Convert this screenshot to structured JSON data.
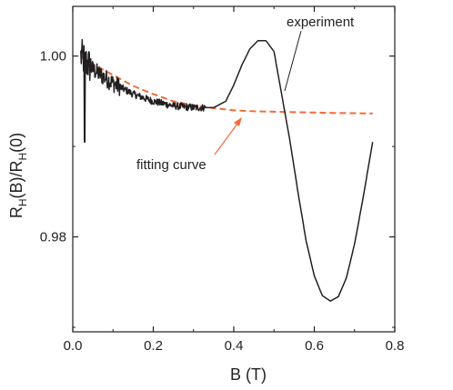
{
  "chart_data": {
    "type": "line",
    "xlabel": "B (T)",
    "ylabel": {
      "r": "R",
      "h1": "H",
      "mid": "(B)/R",
      "h2": "H",
      "end": "(0)"
    },
    "xlim": [
      0.0,
      0.8
    ],
    "ylim": [
      0.9695,
      1.0055
    ],
    "x_ticks": [
      0.0,
      0.2,
      0.4,
      0.6,
      0.8
    ],
    "x_tick_labels": [
      "0.0",
      "0.2",
      "0.4",
      "0.6",
      "0.8"
    ],
    "y_ticks": [
      0.98,
      1.0
    ],
    "y_tick_labels": [
      "0.98",
      "1.00"
    ],
    "grid": false,
    "legend": "none",
    "annotations": [
      {
        "text": "experiment",
        "points_to": {
          "x": 0.52,
          "y": 0.9955
        }
      },
      {
        "text": "fitting curve",
        "points_to": {
          "x": 0.37,
          "y": 0.9942
        }
      }
    ],
    "series": [
      {
        "color": "#231f20",
        "style": "solid",
        "noise_until_x": 0.33,
        "spike": {
          "x": 0.03,
          "y": 0.9905
        },
        "x": [
          0.02,
          0.05,
          0.1,
          0.15,
          0.2,
          0.25,
          0.3,
          0.35,
          0.38,
          0.4,
          0.42,
          0.44,
          0.46,
          0.48,
          0.5,
          0.52,
          0.54,
          0.56,
          0.58,
          0.6,
          0.62,
          0.64,
          0.66,
          0.68,
          0.7,
          0.72,
          0.745
        ],
        "y": [
          1.0,
          0.9985,
          0.997,
          0.9958,
          0.995,
          0.9945,
          0.9943,
          0.9943,
          0.995,
          0.9968,
          0.999,
          1.0008,
          1.0017,
          1.0017,
          1.0005,
          0.9955,
          0.9905,
          0.9848,
          0.9795,
          0.9757,
          0.9735,
          0.9729,
          0.9734,
          0.9755,
          0.9792,
          0.984,
          0.9905
        ]
      },
      {
        "color": "#f26b3a",
        "style": "dashed",
        "x": [
          0.02,
          0.05,
          0.1,
          0.15,
          0.2,
          0.25,
          0.3,
          0.35,
          0.4,
          0.45,
          0.5,
          0.55,
          0.6,
          0.65,
          0.7,
          0.745
        ],
        "y": [
          0.99995,
          0.9991,
          0.9979,
          0.9967,
          0.9958,
          0.995,
          0.99455,
          0.99425,
          0.994,
          0.9939,
          0.99385,
          0.9938,
          0.99375,
          0.9937,
          0.99368,
          0.99365
        ]
      }
    ]
  }
}
